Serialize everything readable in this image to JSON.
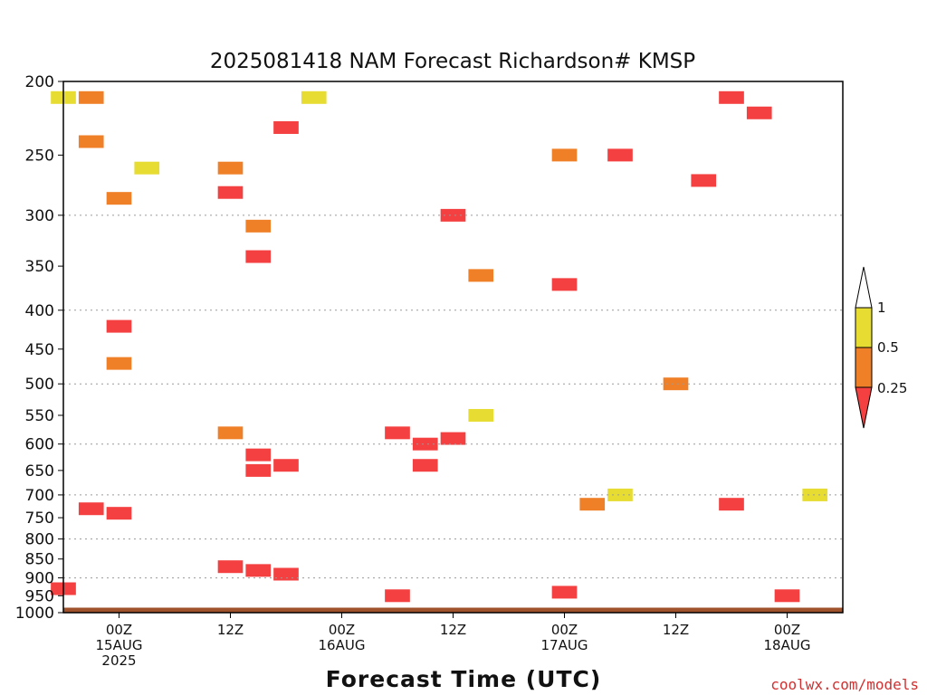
{
  "chart_data": {
    "type": "heatmap",
    "title": "2025081418 NAM Forecast Richardson# KMSP",
    "xlabel": "Forecast Time (UTC)",
    "ylabel": "",
    "credit": "coolwx.com/models",
    "y_axis": {
      "scale": "log-pressure",
      "range_hPa": [
        200,
        1000
      ],
      "inverted": true,
      "ticks": [
        "200",
        "250",
        "300",
        "350",
        "400",
        "450",
        "500",
        "550",
        "600",
        "650",
        "700",
        "750",
        "800",
        "850",
        "900",
        "950",
        "1000"
      ]
    },
    "x_axis": {
      "range": [
        "2025-08-14 18Z",
        "2025-08-18 06Z"
      ],
      "ticks": [
        {
          "time": "2025-08-15 00Z",
          "lines": [
            "00Z",
            "15AUG",
            "2025"
          ]
        },
        {
          "time": "2025-08-15 12Z",
          "lines": [
            "12Z"
          ]
        },
        {
          "time": "2025-08-16 00Z",
          "lines": [
            "00Z",
            "16AUG"
          ]
        },
        {
          "time": "2025-08-16 12Z",
          "lines": [
            "12Z"
          ]
        },
        {
          "time": "2025-08-17 00Z",
          "lines": [
            "00Z",
            "17AUG"
          ]
        },
        {
          "time": "2025-08-17 12Z",
          "lines": [
            "12Z"
          ]
        },
        {
          "time": "2025-08-18 00Z",
          "lines": [
            "00Z",
            "18AUG"
          ]
        }
      ]
    },
    "grid": "dotted horizontal",
    "legend": {
      "placement": "right",
      "bins": [
        {
          "range": "< 0.25",
          "color": "#f44040"
        },
        {
          "range": "0.25 - 0.5",
          "color": "#f08028"
        },
        {
          "range": "0.5 - 1",
          "color": "#e6dc32"
        },
        {
          "range": "> 1",
          "color": "#ffffff"
        }
      ],
      "labels": [
        "1",
        "0.5",
        "0.25"
      ]
    },
    "ground_color": "#a0522d",
    "ground_below_hPa": 985,
    "colors": {
      "lt025": "#f44040",
      "b025_05": "#f08028",
      "b05_1": "#e6dc32"
    },
    "cells": [
      {
        "t": "2025-08-14 18Z",
        "p": 210,
        "bin": "b05_1"
      },
      {
        "t": "2025-08-14 21Z",
        "p": 210,
        "bin": "b025_05"
      },
      {
        "t": "2025-08-14 21Z",
        "p": 240,
        "bin": "b025_05"
      },
      {
        "t": "2025-08-15 03Z",
        "p": 260,
        "bin": "b05_1"
      },
      {
        "t": "2025-08-15 00Z",
        "p": 285,
        "bin": "b025_05"
      },
      {
        "t": "2025-08-15 00Z",
        "p": 470,
        "bin": "b025_05"
      },
      {
        "t": "2025-08-15 00Z",
        "p": 420,
        "bin": "lt025"
      },
      {
        "t": "2025-08-15 12Z",
        "p": 260,
        "bin": "b025_05"
      },
      {
        "t": "2025-08-15 12Z",
        "p": 280,
        "bin": "lt025"
      },
      {
        "t": "2025-08-15 15Z",
        "p": 310,
        "bin": "b025_05"
      },
      {
        "t": "2025-08-15 15Z",
        "p": 340,
        "bin": "lt025"
      },
      {
        "t": "2025-08-15 18Z",
        "p": 230,
        "bin": "lt025"
      },
      {
        "t": "2025-08-15 21Z",
        "p": 210,
        "bin": "b05_1"
      },
      {
        "t": "2025-08-15 12Z",
        "p": 580,
        "bin": "b025_05"
      },
      {
        "t": "2025-08-15 15Z",
        "p": 620,
        "bin": "lt025"
      },
      {
        "t": "2025-08-15 15Z",
        "p": 650,
        "bin": "lt025"
      },
      {
        "t": "2025-08-15 18Z",
        "p": 640,
        "bin": "lt025"
      },
      {
        "t": "2025-08-16 06Z",
        "p": 580,
        "bin": "lt025"
      },
      {
        "t": "2025-08-16 09Z",
        "p": 600,
        "bin": "lt025"
      },
      {
        "t": "2025-08-16 09Z",
        "p": 640,
        "bin": "lt025"
      },
      {
        "t": "2025-08-16 12Z",
        "p": 590,
        "bin": "lt025"
      },
      {
        "t": "2025-08-16 15Z",
        "p": 550,
        "bin": "b05_1"
      },
      {
        "t": "2025-08-16 12Z",
        "p": 300,
        "bin": "lt025"
      },
      {
        "t": "2025-08-16 15Z",
        "p": 360,
        "bin": "b025_05"
      },
      {
        "t": "2025-08-17 00Z",
        "p": 370,
        "bin": "lt025"
      },
      {
        "t": "2025-08-17 00Z",
        "p": 250,
        "bin": "b025_05"
      },
      {
        "t": "2025-08-17 06Z",
        "p": 250,
        "bin": "lt025"
      },
      {
        "t": "2025-08-17 15Z",
        "p": 270,
        "bin": "lt025"
      },
      {
        "t": "2025-08-17 18Z",
        "p": 210,
        "bin": "lt025"
      },
      {
        "t": "2025-08-17 21Z",
        "p": 220,
        "bin": "lt025"
      },
      {
        "t": "2025-08-17 03Z",
        "p": 720,
        "bin": "b025_05"
      },
      {
        "t": "2025-08-17 06Z",
        "p": 700,
        "bin": "b05_1"
      },
      {
        "t": "2025-08-17 12Z",
        "p": 500,
        "bin": "b025_05"
      },
      {
        "t": "2025-08-17 18Z",
        "p": 720,
        "bin": "lt025"
      },
      {
        "t": "2025-08-18 03Z",
        "p": 700,
        "bin": "b05_1"
      },
      {
        "t": "2025-08-14 21Z",
        "p": 730,
        "bin": "lt025"
      },
      {
        "t": "2025-08-15 00Z",
        "p": 740,
        "bin": "lt025"
      },
      {
        "t": "2025-08-15 12Z",
        "p": 870,
        "bin": "lt025"
      },
      {
        "t": "2025-08-15 15Z",
        "p": 880,
        "bin": "lt025"
      },
      {
        "t": "2025-08-15 18Z",
        "p": 890,
        "bin": "lt025"
      },
      {
        "t": "2025-08-14 18Z",
        "p": 930,
        "bin": "lt025"
      },
      {
        "t": "2025-08-16 06Z",
        "p": 950,
        "bin": "lt025"
      },
      {
        "t": "2025-08-17 00Z",
        "p": 940,
        "bin": "lt025"
      },
      {
        "t": "2025-08-18 00Z",
        "p": 950,
        "bin": "lt025"
      }
    ]
  }
}
